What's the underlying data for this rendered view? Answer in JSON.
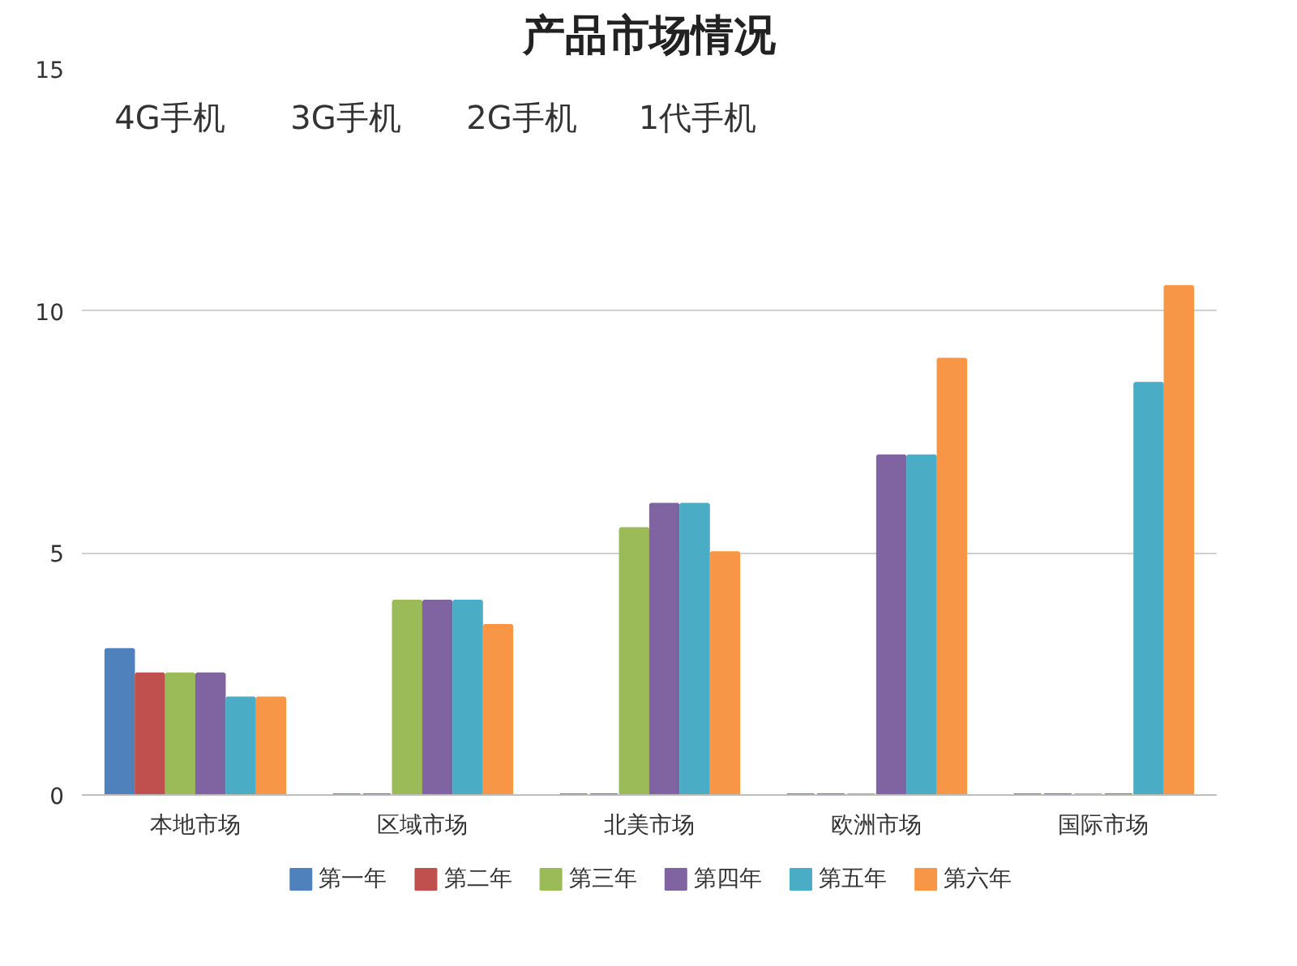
{
  "chart_data": {
    "type": "bar",
    "title": "产品市场情况",
    "categories": [
      "本地市场",
      "区域市场",
      "北美市场",
      "欧洲市场",
      "国际市场"
    ],
    "series": [
      {
        "name": "第一年",
        "color": "#4f81bd",
        "values": [
          3,
          0,
          0,
          0,
          0
        ]
      },
      {
        "name": "第二年",
        "color": "#c0504d",
        "values": [
          2.5,
          0,
          0,
          0,
          0
        ]
      },
      {
        "name": "第三年",
        "color": "#9bbb59",
        "values": [
          2.5,
          4,
          5.5,
          0,
          0
        ]
      },
      {
        "name": "第四年",
        "color": "#8064a2",
        "values": [
          2.5,
          4,
          6,
          7,
          0
        ]
      },
      {
        "name": "第五年",
        "color": "#4bacc6",
        "values": [
          2,
          4,
          6,
          7,
          8.5
        ]
      },
      {
        "name": "第六年",
        "color": "#f79646",
        "values": [
          2,
          3.5,
          5,
          9,
          10.5
        ]
      }
    ],
    "ylim": [
      0,
      15
    ],
    "yticks": [
      0,
      5,
      10,
      15
    ],
    "grid": "y",
    "legend": "bottom",
    "annotations": [
      "4G手机",
      "3G手机",
      "2G手机",
      "1代手机"
    ]
  }
}
